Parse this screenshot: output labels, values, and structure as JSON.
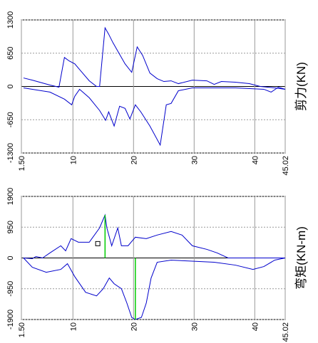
{
  "chart_data": [
    {
      "type": "line",
      "title": "剪力(KN)",
      "xlim": [
        1.5,
        45.02
      ],
      "xticks": [
        {
          "value": 1.5,
          "label": "1.50"
        },
        10,
        20,
        30,
        40,
        45.02
      ],
      "ylim": [
        -1300,
        1300
      ],
      "yticks": [
        1300,
        650,
        0,
        -650,
        -1300
      ],
      "grid": true,
      "series": [
        {
          "color": "#0000cc",
          "x": [
            1.85,
            3.3,
            6.2,
            7.7,
            8.6,
            9.4,
            10.3,
            11.1,
            12.7,
            13.9,
            14.4,
            15.3,
            15.9,
            16.6,
            18.6,
            19.7,
            20.6,
            21.5,
            22.7,
            23.9,
            25.0,
            26.2,
            27.4,
            29.7,
            32.1,
            33.3,
            34.5,
            36.8,
            39.1,
            40.9,
            43.3,
            45.02
          ],
          "values": [
            166,
            124,
            28,
            -14,
            566,
            497,
            442,
            331,
            110,
            0,
            0,
            1145,
            1021,
            856,
            442,
            276,
            773,
            607,
            262,
            152,
            97,
            110,
            55,
            124,
            110,
            41,
            97,
            83,
            55,
            0,
            -28,
            -55
          ]
        },
        {
          "color": "#0000cc",
          "x": [
            1.85,
            6.2,
            8.6,
            9.8,
            10.3,
            11.1,
            12.7,
            14.4,
            15.4,
            15.9,
            16.8,
            17.7,
            18.6,
            19.4,
            20.3,
            21.2,
            22.7,
            24.4,
            25.4,
            26.2,
            27.4,
            29.7,
            36.8,
            41.5,
            42.7,
            43.9,
            45.02
          ],
          "values": [
            -28,
            -110,
            -248,
            -359,
            -193,
            -55,
            -221,
            -469,
            -662,
            -497,
            -773,
            -386,
            -428,
            -635,
            -359,
            -497,
            -773,
            -1145,
            -359,
            -331,
            -83,
            -28,
            -28,
            -55,
            -110,
            -14,
            -55
          ]
        }
      ]
    },
    {
      "type": "line",
      "title": "弯矩(KN-m)",
      "xlim": [
        1.5,
        45.02
      ],
      "xticks": [
        {
          "value": 1.5,
          "label": "1.50"
        },
        10,
        20,
        30,
        40,
        45.02
      ],
      "ylim": [
        -1900,
        1900
      ],
      "yticks": [
        1900,
        950,
        0,
        -950,
        -1900
      ],
      "grid": true,
      "series": [
        {
          "color": "#0000cc",
          "x": [
            1.85,
            3.3,
            3.9,
            5.0,
            6.2,
            8.0,
            8.8,
            9.7,
            10.9,
            12.7,
            14.4,
            15.3,
            15.6,
            16.4,
            17.4,
            18.0,
            19.1,
            20.3,
            22.1,
            23.9,
            26.2,
            28.0,
            29.7,
            32.1,
            33.8,
            35.6,
            45.02
          ],
          "values": [
            0,
            -22,
            44,
            0,
            155,
            376,
            221,
            597,
            486,
            486,
            928,
            1326,
            928,
            376,
            928,
            376,
            376,
            641,
            597,
            707,
            818,
            707,
            376,
            265,
            155,
            0,
            0
          ]
        },
        {
          "color": "#0000cc",
          "x": [
            1.85,
            3.3,
            5.6,
            8.0,
            9.1,
            10.3,
            12.1,
            13.9,
            15.0,
            16.0,
            16.8,
            18.0,
            18.9,
            19.7,
            20.3,
            21.3,
            22.1,
            22.9,
            23.9,
            26.2,
            33.3,
            36.8,
            39.7,
            41.5,
            43.3,
            45.02
          ],
          "values": [
            0,
            -287,
            -442,
            -353,
            -177,
            -575,
            -1061,
            -1171,
            -950,
            -619,
            -796,
            -950,
            -1392,
            -1834,
            -1900,
            -1834,
            -1392,
            -619,
            -133,
            -66,
            -133,
            -221,
            -353,
            -265,
            -66,
            0
          ]
        }
      ],
      "markers": {
        "color": "#00cc00",
        "x": [
          15.3,
          20.3
        ],
        "values": [
          1326,
          -1900
        ]
      },
      "cursor": {
        "x": 14.1,
        "y": 442
      }
    }
  ]
}
